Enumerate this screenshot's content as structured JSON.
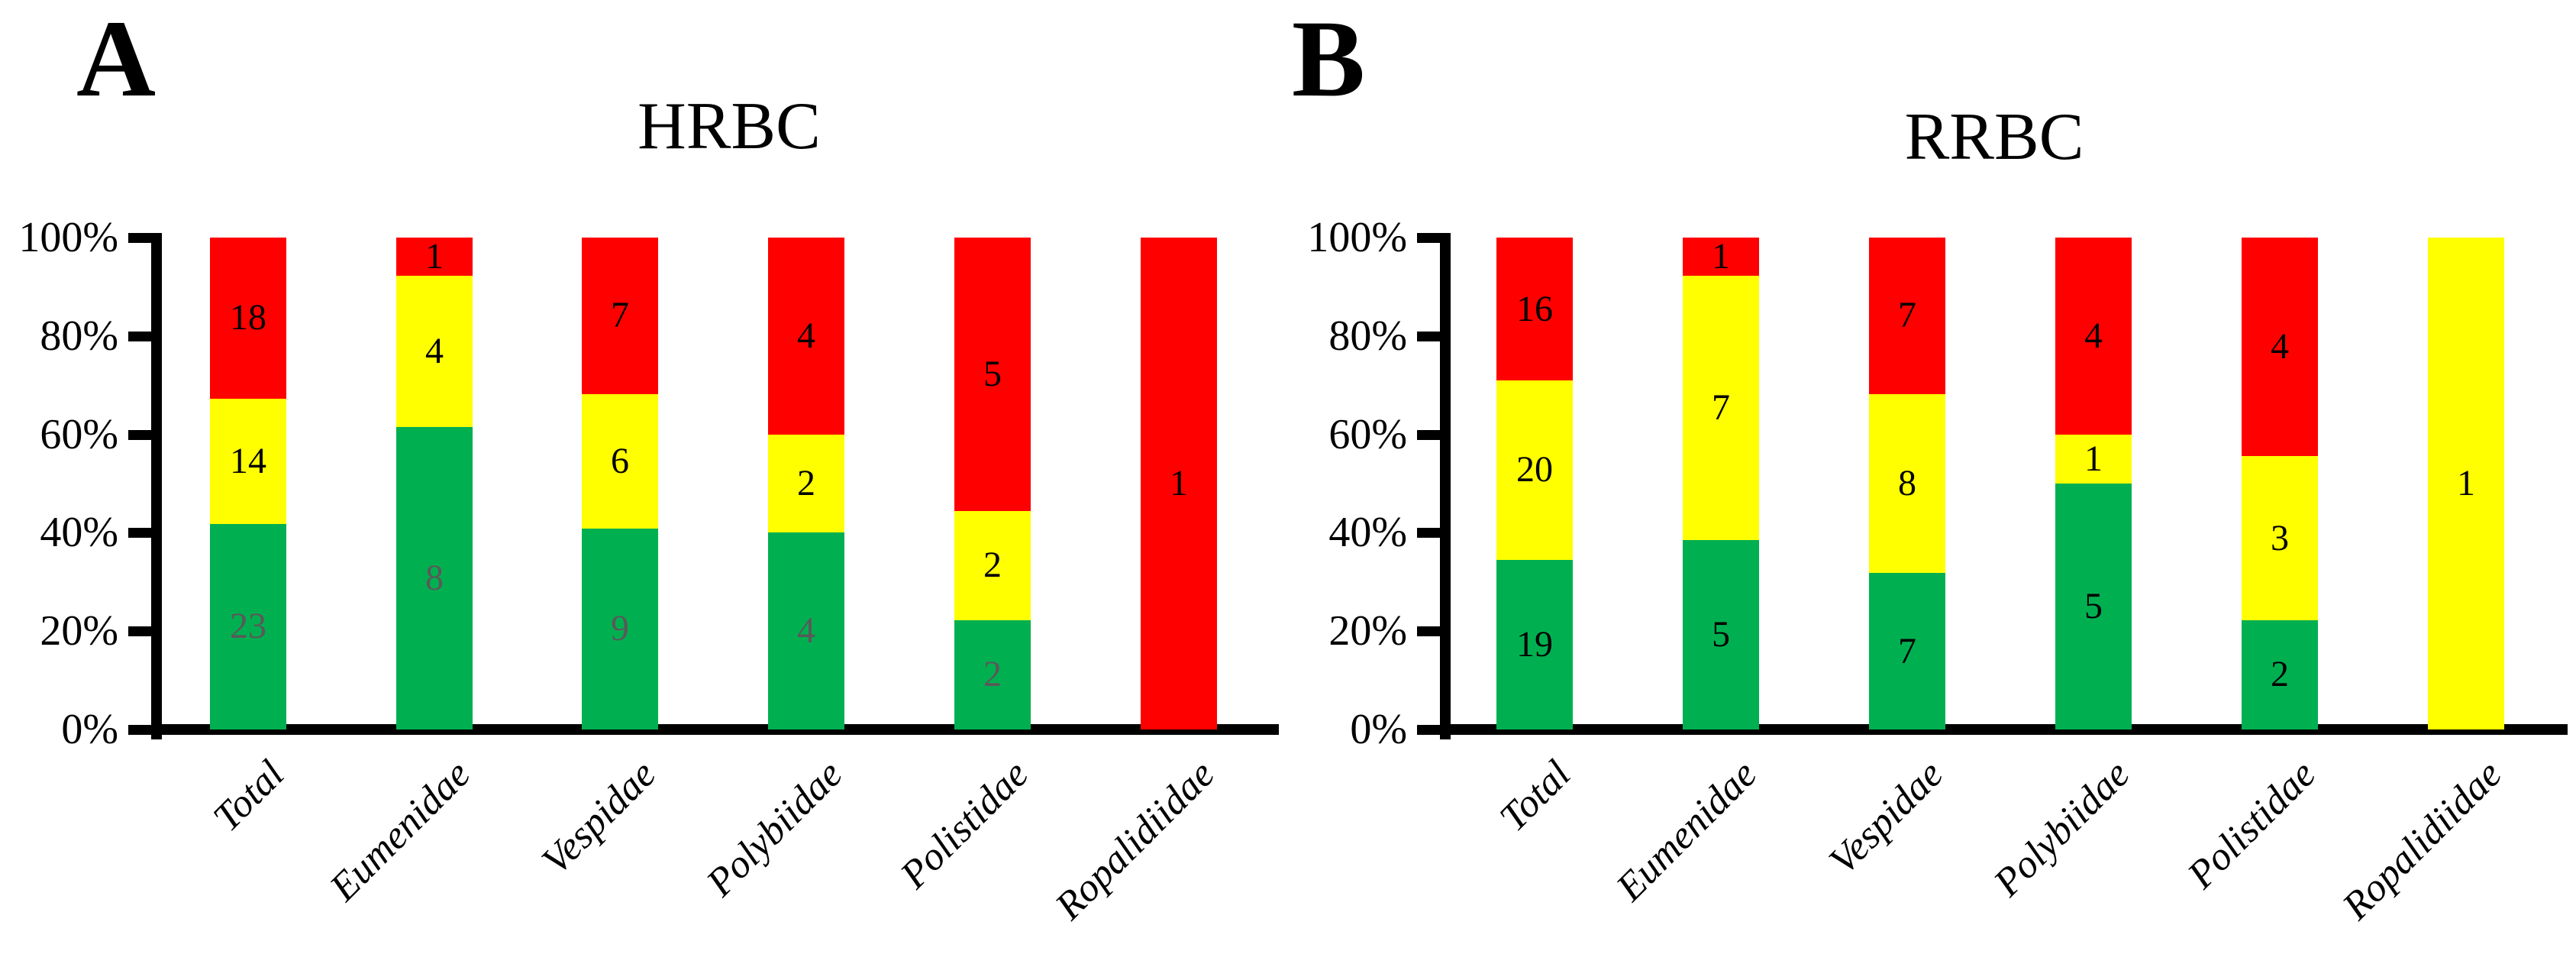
{
  "figure": {
    "panels": [
      {
        "letter": "A",
        "title": "HRBC"
      },
      {
        "letter": "B",
        "title": "RRBC"
      }
    ]
  },
  "chart_data": [
    {
      "type": "bar",
      "stacking": "percent",
      "panel": "A",
      "title": "HRBC",
      "categories": [
        "Total",
        "Eumenidae",
        "Vespidae",
        "Polybiidae",
        "Polistidae",
        "Ropalidiidae"
      ],
      "series": [
        {
          "name": "green",
          "color": "#00B050",
          "label_color": "#595959",
          "values": [
            23,
            8,
            9,
            4,
            2,
            0
          ]
        },
        {
          "name": "yellow",
          "color": "#FFFF00",
          "label_color": "#000000",
          "values": [
            14,
            4,
            6,
            2,
            2,
            0
          ]
        },
        {
          "name": "red",
          "color": "#FF0000",
          "label_color": "#000000",
          "values": [
            18,
            1,
            7,
            4,
            5,
            1
          ]
        }
      ],
      "y_axis": {
        "ticks": [
          "0%",
          "20%",
          "40%",
          "60%",
          "80%",
          "100%"
        ],
        "range": [
          0,
          100
        ],
        "grid": false
      },
      "legend": "none"
    },
    {
      "type": "bar",
      "stacking": "percent",
      "panel": "B",
      "title": "RRBC",
      "categories": [
        "Total",
        "Eumenidae",
        "Vespidae",
        "Polybiidae",
        "Polistidae",
        "Ropalidiidae"
      ],
      "series": [
        {
          "name": "green",
          "color": "#00B050",
          "label_color": "#000000",
          "values": [
            19,
            5,
            7,
            5,
            2,
            0
          ]
        },
        {
          "name": "yellow",
          "color": "#FFFF00",
          "label_color": "#000000",
          "values": [
            20,
            7,
            8,
            1,
            3,
            1
          ]
        },
        {
          "name": "red",
          "color": "#FF0000",
          "label_color": "#000000",
          "values": [
            16,
            1,
            7,
            4,
            4,
            0
          ]
        }
      ],
      "y_axis": {
        "ticks": [
          "0%",
          "20%",
          "40%",
          "60%",
          "80%",
          "100%"
        ],
        "range": [
          0,
          100
        ],
        "grid": false
      },
      "legend": "none"
    }
  ]
}
